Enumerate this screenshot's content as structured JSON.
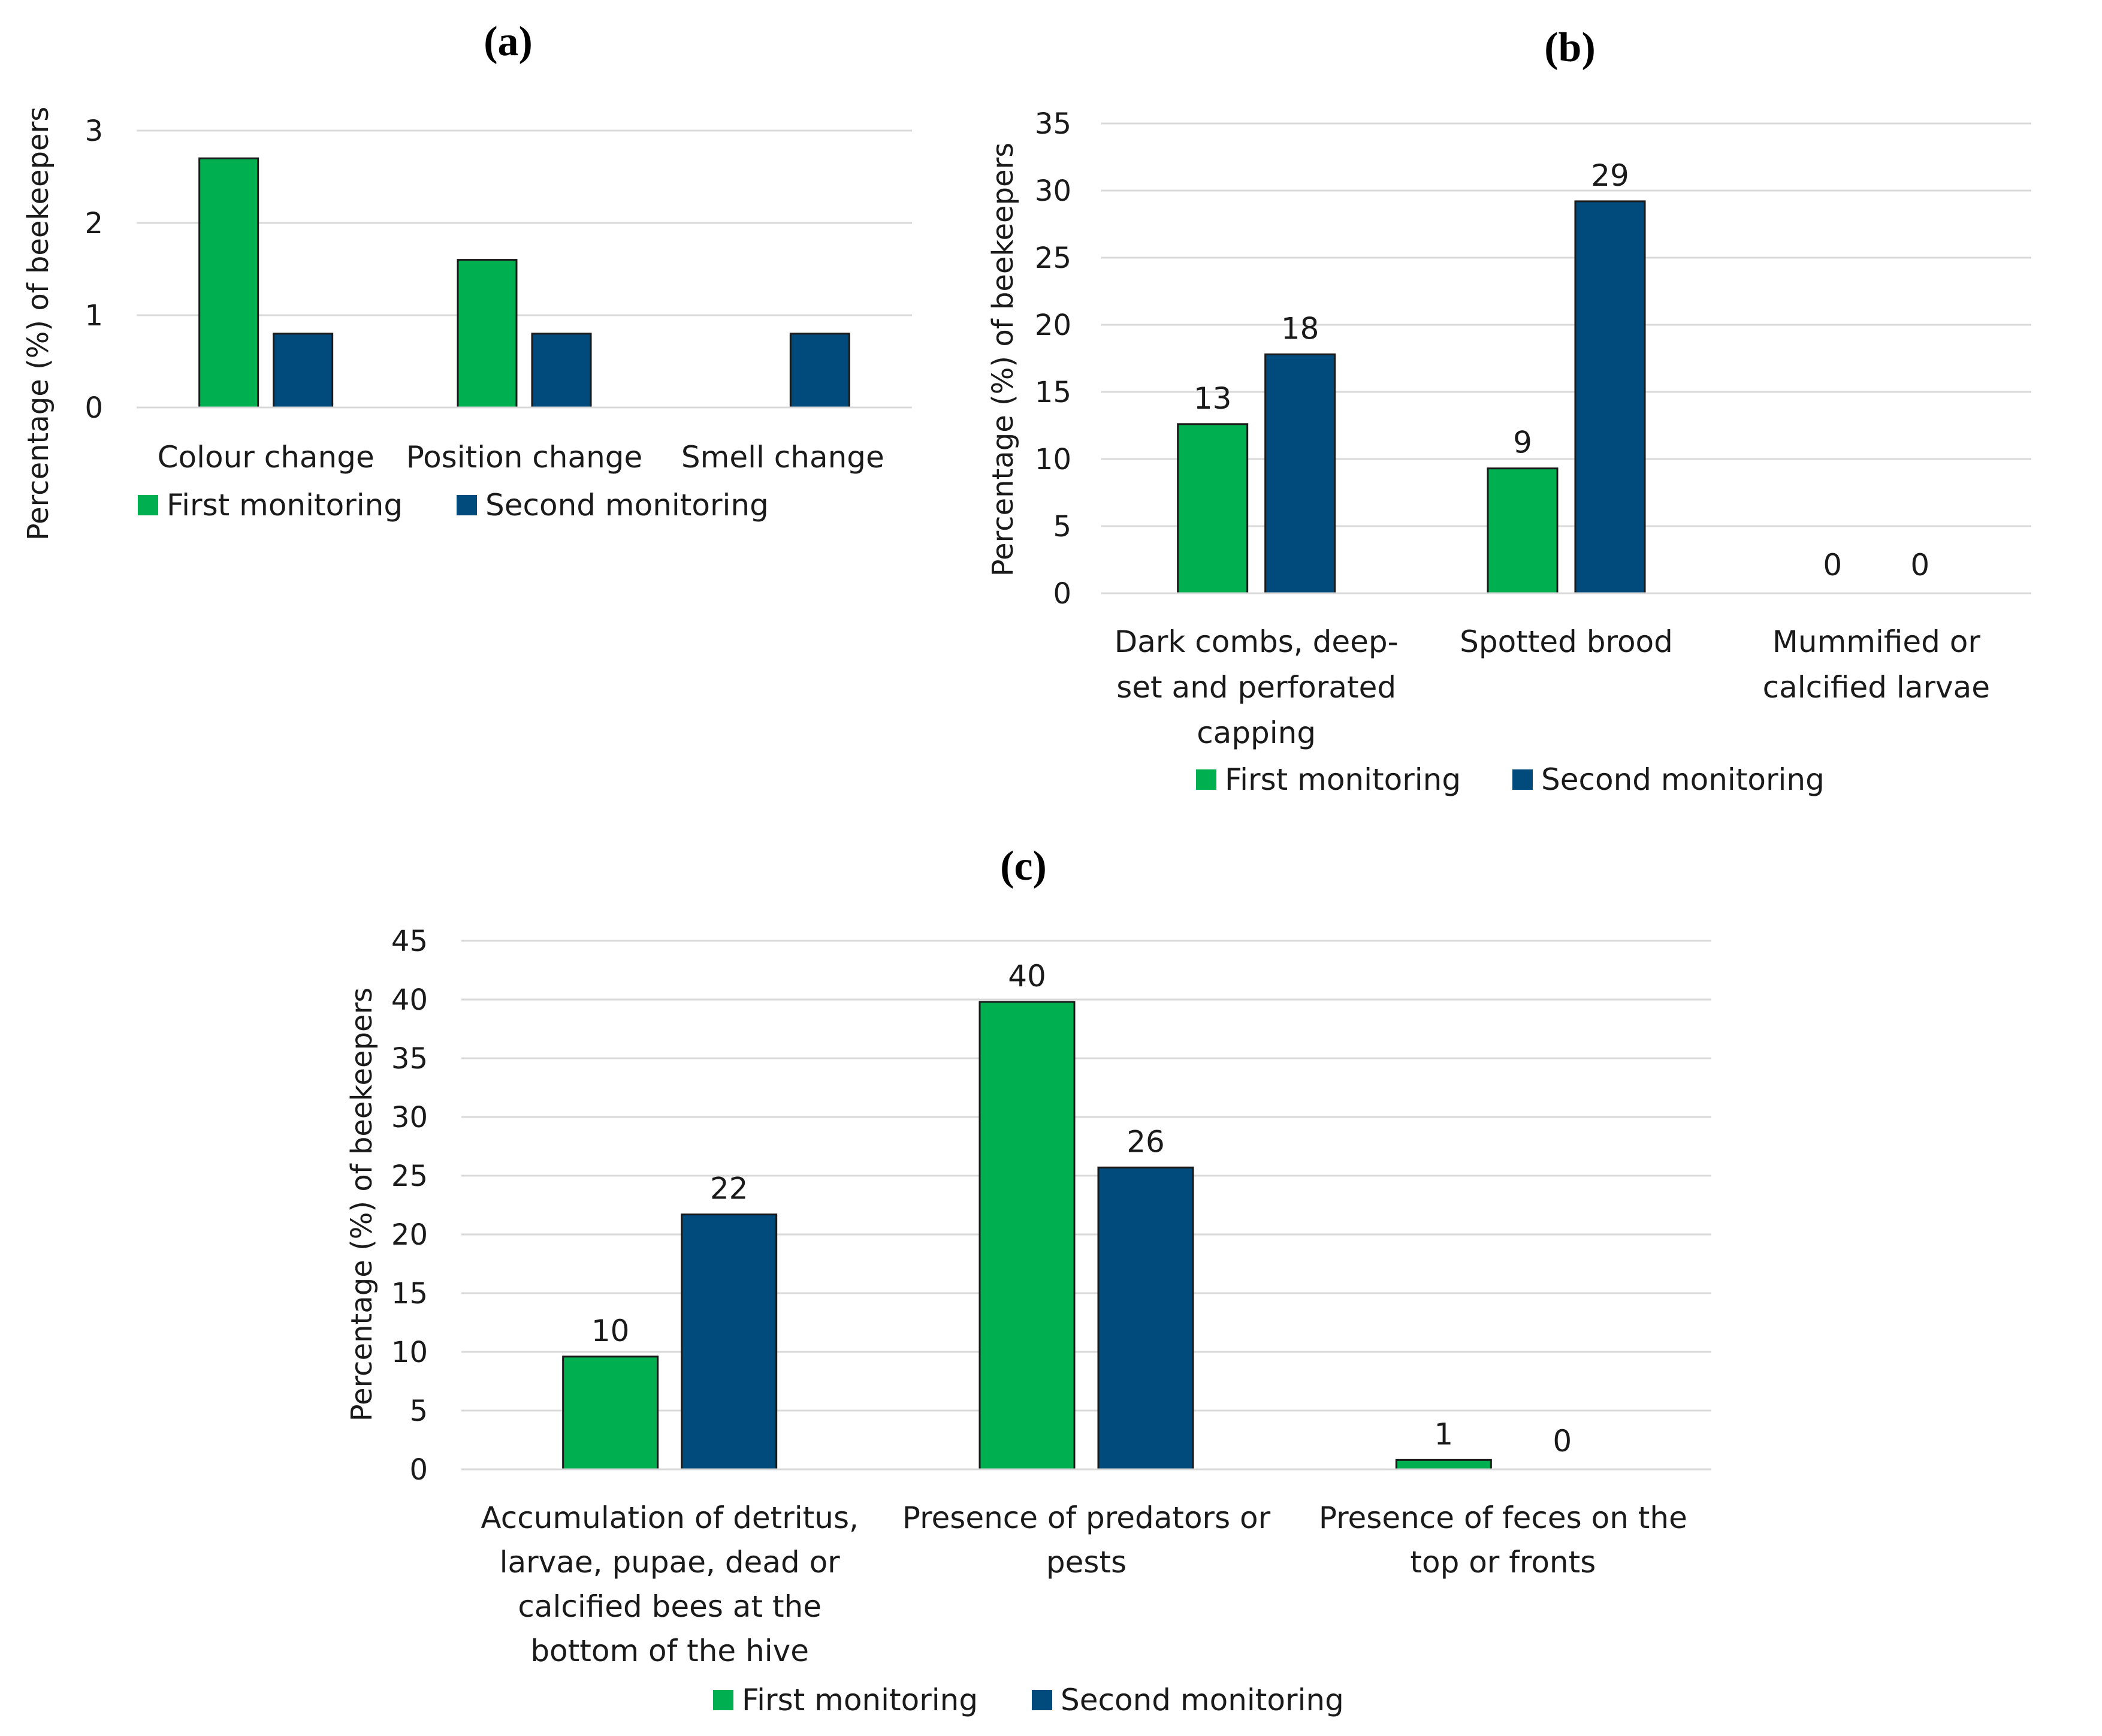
{
  "colors": {
    "first": "#00b050",
    "second": "#004a7c"
  },
  "chart_data": [
    {
      "type": "bar",
      "panel": "(a)",
      "ylabel": "Percentage (%) of beekeepers",
      "ylim": [
        0,
        3
      ],
      "yticks": [
        "0",
        "1",
        "2",
        "3"
      ],
      "categories": [
        [
          "Colour change"
        ],
        [
          "Position change"
        ],
        [
          "Smell change"
        ]
      ],
      "series": [
        {
          "name": "First monitoring",
          "values": [
            2.7,
            1.6,
            null
          ]
        },
        {
          "name": "Second monitoring",
          "values": [
            0.8,
            0.8,
            0.8
          ]
        }
      ],
      "data_labels": null,
      "legend": "bottom",
      "grid": true
    },
    {
      "type": "bar",
      "panel": "(b)",
      "ylabel": "Percentage (%) of beekeepers",
      "ylim": [
        0,
        35
      ],
      "yticks": [
        "0",
        "5",
        "10",
        "15",
        "20",
        "25",
        "30",
        "35"
      ],
      "categories": [
        [
          "Dark combs, deep-",
          "set and perforated",
          "capping"
        ],
        [
          "Spotted brood"
        ],
        [
          "Mummified or",
          "calcified larvae"
        ]
      ],
      "series": [
        {
          "name": "First monitoring",
          "values": [
            12.6,
            9.3,
            0
          ]
        },
        {
          "name": "Second monitoring",
          "values": [
            17.8,
            29.2,
            0
          ]
        }
      ],
      "data_labels": [
        [
          "13",
          "9",
          "0"
        ],
        [
          "18",
          "29",
          "0"
        ]
      ],
      "legend": "bottom",
      "grid": true
    },
    {
      "type": "bar",
      "panel": "(c)",
      "ylabel": "Percentage (%) of beekeepers",
      "ylim": [
        0,
        45
      ],
      "yticks": [
        "0",
        "5",
        "10",
        "15",
        "20",
        "25",
        "30",
        "35",
        "40",
        "45"
      ],
      "categories": [
        [
          "Accumulation of detritus,",
          "larvae, pupae, dead or",
          "calcified bees at the",
          "bottom of the hive"
        ],
        [
          "Presence of predators or",
          "pests"
        ],
        [
          "Presence of feces on the",
          "top or fronts"
        ]
      ],
      "series": [
        {
          "name": "First monitoring",
          "values": [
            9.6,
            39.8,
            0.8
          ]
        },
        {
          "name": "Second monitoring",
          "values": [
            21.7,
            25.7,
            0
          ]
        }
      ],
      "data_labels": [
        [
          "10",
          "40",
          "1"
        ],
        [
          "22",
          "26",
          "0"
        ]
      ],
      "legend": "bottom",
      "grid": true
    }
  ]
}
